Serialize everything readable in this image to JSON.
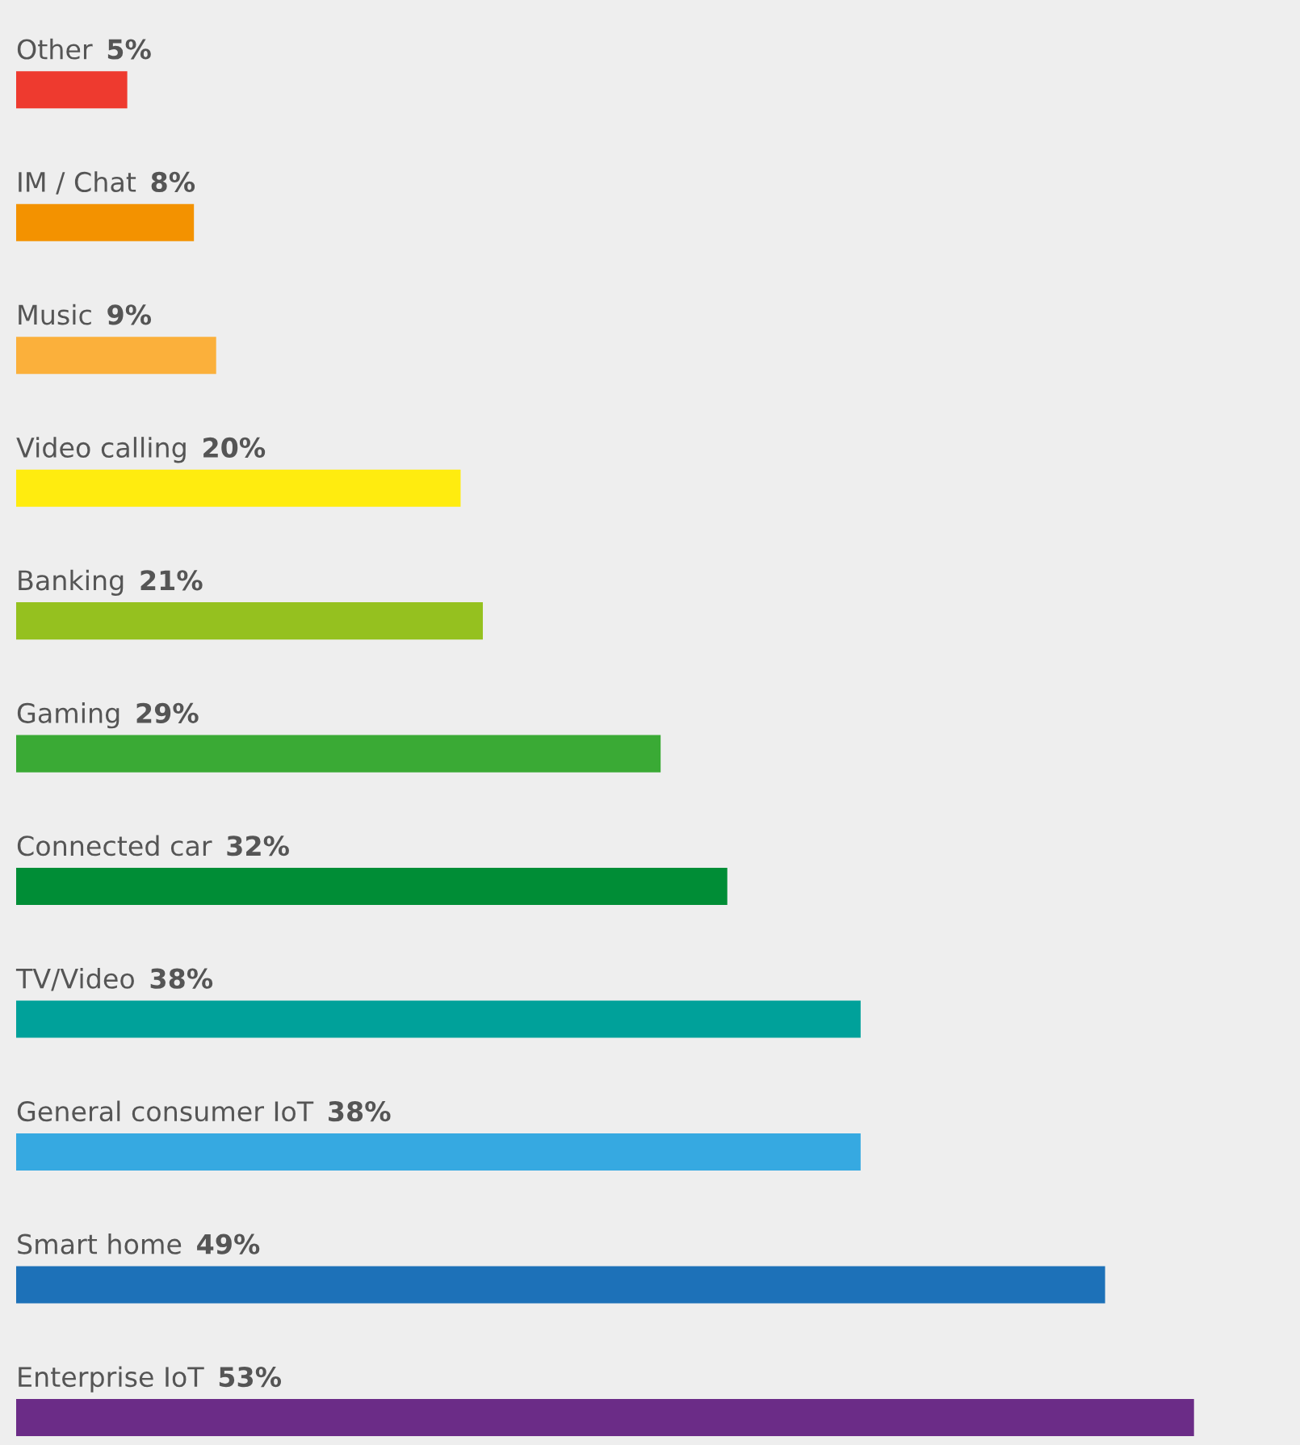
{
  "chart_data": {
    "type": "bar",
    "orientation": "horizontal",
    "categories": [
      "Other",
      "IM / Chat",
      "Music",
      "Video calling",
      "Banking",
      "Gaming",
      "Connected car",
      "TV/Video",
      "General consumer IoT",
      "Smart home",
      "Enterprise IoT"
    ],
    "values": [
      5,
      8,
      9,
      20,
      21,
      29,
      32,
      38,
      38,
      49,
      53
    ],
    "value_labels": [
      "5%",
      "8%",
      "9%",
      "20%",
      "21%",
      "29%",
      "32%",
      "38%",
      "38%",
      "49%",
      "53%"
    ],
    "colors": [
      "#ee3a2f",
      "#f39200",
      "#fbb03b",
      "#ffec0f",
      "#95c11f",
      "#3aaa35",
      "#008d36",
      "#00a19a",
      "#36a9e1",
      "#1d71b8",
      "#6b2c87"
    ],
    "grid": false,
    "legend": false
  }
}
